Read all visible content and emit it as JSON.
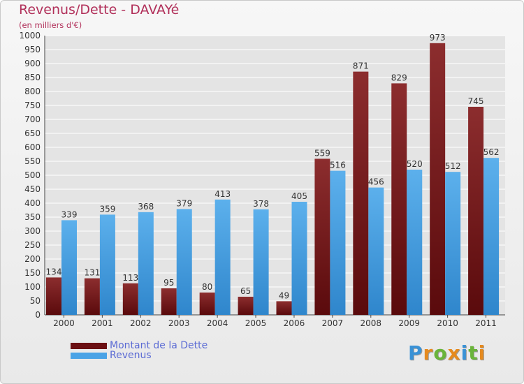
{
  "header": {
    "title": "Revenus/Dette - DAVAYé",
    "subtitle": "(en milliers d'€)"
  },
  "chart_data": {
    "type": "bar",
    "categories": [
      "2000",
      "2001",
      "2002",
      "2003",
      "2004",
      "2005",
      "2006",
      "2007",
      "2008",
      "2009",
      "2010",
      "2011"
    ],
    "series": [
      {
        "name": "Montant de la Dette",
        "values": [
          134,
          131,
          113,
          95,
          80,
          65,
          49,
          559,
          871,
          829,
          973,
          745
        ],
        "color": "#7a1a1c"
      },
      {
        "name": "Revenus",
        "values": [
          339,
          359,
          368,
          379,
          413,
          378,
          405,
          516,
          456,
          520,
          512,
          562
        ],
        "color": "#4aa3e6"
      }
    ],
    "ylim": [
      0,
      1000
    ],
    "yticks": [
      0,
      50,
      100,
      150,
      200,
      250,
      300,
      350,
      400,
      450,
      500,
      550,
      600,
      650,
      700,
      750,
      800,
      850,
      900,
      950,
      1000
    ],
    "grid": true,
    "legend_position": "bottom-left"
  },
  "legend": {
    "items": [
      {
        "label": "Montant de la Dette",
        "color": "#7a1a1c"
      },
      {
        "label": "Revenus",
        "color": "#4aa3e6"
      }
    ]
  },
  "logo": {
    "letters": [
      "P",
      "r",
      "o",
      "x",
      "i",
      "t",
      "i"
    ],
    "colors": [
      "#3a92d6",
      "#e58a1f",
      "#6ab43a",
      "#e58a1f",
      "#3a92d6",
      "#6ab43a",
      "#e58a1f"
    ]
  }
}
